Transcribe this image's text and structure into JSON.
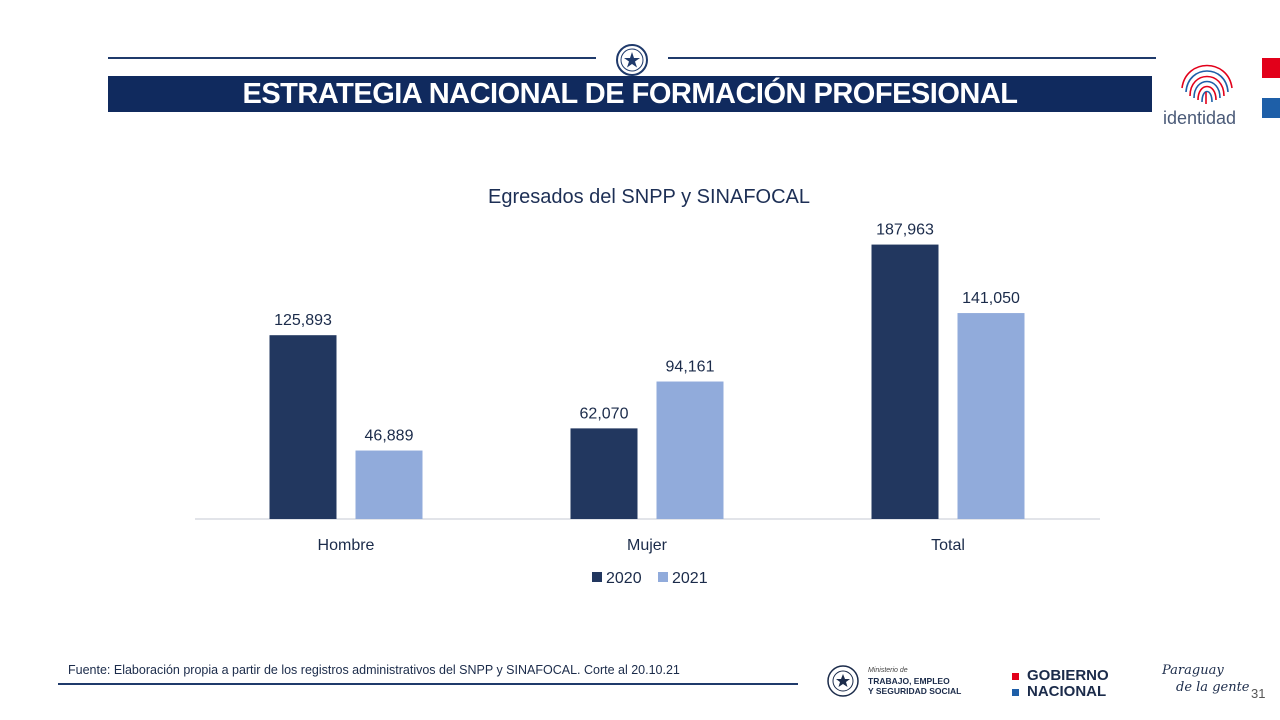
{
  "header": {
    "title": "ESTRATEGIA NACIONAL DE FORMACIÓN PROFESIONAL",
    "identidad_label": "identidad",
    "seal_icon": "national-seal-icon",
    "accent_red": "#e2001a",
    "accent_blue": "#1e5fa8",
    "bar_color": "#102a5e"
  },
  "chart_data": {
    "type": "bar",
    "title": "Egresados del SNPP y SINAFOCAL",
    "categories": [
      "Hombre",
      "Mujer",
      "Total"
    ],
    "series": [
      {
        "name": "2020",
        "values": [
          125893,
          62070,
          187963
        ],
        "labels": [
          "125,893",
          "62,070",
          "187,963"
        ],
        "color": "#22375f"
      },
      {
        "name": "2021",
        "values": [
          46889,
          94161,
          141050
        ],
        "labels": [
          "46,889",
          "94,161",
          "141,050"
        ],
        "color": "#91abdb"
      }
    ],
    "xlabel": "",
    "ylabel": "",
    "ylim": [
      0,
      200000
    ],
    "legend_position": "bottom-center",
    "grid": false
  },
  "footer": {
    "source": "Fuente: Elaboración propia a partir de los registros administrativos del SNPP y SINAFOCAL. Corte al 20.10.21",
    "ministry_small": "Ministerio de",
    "ministry_line1": "TRABAJO, EMPLEO",
    "ministry_line2": "Y SEGURIDAD SOCIAL",
    "gobierno_line1": "GOBIERNO",
    "gobierno_line2": "NACIONAL",
    "slogan_line1": "Paraguay",
    "slogan_line2": "de la gente",
    "page_number": "31"
  }
}
